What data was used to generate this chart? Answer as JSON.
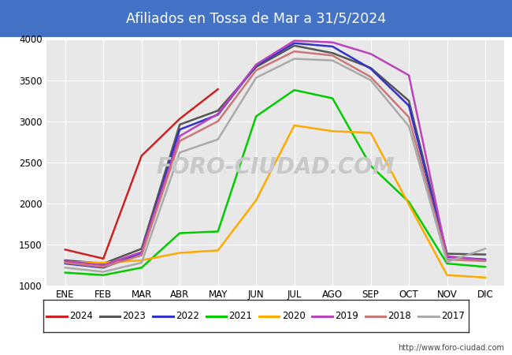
{
  "title": "Afiliados en Tossa de Mar a 31/5/2024",
  "title_color": "#ffffff",
  "title_bg": "#4472c4",
  "months": [
    "ENE",
    "FEB",
    "MAR",
    "ABR",
    "MAY",
    "JUN",
    "JUL",
    "AGO",
    "SEP",
    "OCT",
    "NOV",
    "DIC"
  ],
  "ylim": [
    1000,
    4000
  ],
  "yticks": [
    1000,
    1500,
    2000,
    2500,
    3000,
    3500,
    4000
  ],
  "series": {
    "2024": {
      "color": "#cc2222",
      "data": [
        1440,
        1330,
        2580,
        3030,
        3390,
        null,
        null,
        null,
        null,
        null,
        null,
        null
      ]
    },
    "2023": {
      "color": "#555555",
      "data": [
        1310,
        1270,
        1450,
        2960,
        3130,
        3660,
        3920,
        3830,
        3650,
        3250,
        1390,
        1380
      ]
    },
    "2022": {
      "color": "#3333cc",
      "data": [
        1270,
        1220,
        1400,
        2900,
        3080,
        3680,
        3950,
        3910,
        3640,
        3190,
        1350,
        1320
      ]
    },
    "2021": {
      "color": "#00cc00",
      "data": [
        1160,
        1130,
        1220,
        1640,
        1660,
        3060,
        3380,
        3280,
        2460,
        2020,
        1270,
        1230
      ]
    },
    "2020": {
      "color": "#ffaa00",
      "data": [
        1290,
        1280,
        1310,
        1400,
        1430,
        2040,
        2950,
        2880,
        2860,
        1990,
        1130,
        1100
      ]
    },
    "2019": {
      "color": "#bb44bb",
      "data": [
        1300,
        1250,
        1410,
        2820,
        3090,
        3690,
        3980,
        3960,
        3820,
        3560,
        1360,
        1310
      ]
    },
    "2018": {
      "color": "#cc7777",
      "data": [
        1280,
        1230,
        1370,
        2760,
        3000,
        3620,
        3850,
        3800,
        3540,
        3050,
        1320,
        1300
      ]
    },
    "2017": {
      "color": "#aaaaaa",
      "data": [
        1220,
        1170,
        1280,
        2620,
        2780,
        3530,
        3760,
        3740,
        3500,
        2940,
        1290,
        1450
      ]
    }
  },
  "legend_order": [
    "2024",
    "2023",
    "2022",
    "2021",
    "2020",
    "2019",
    "2018",
    "2017"
  ],
  "url_text": "http://www.foro-ciudad.com",
  "bg_plot": "#e8e8e8",
  "bg_fig": "#ffffff",
  "grid_color": "#ffffff",
  "watermark_text": "FORO-CIUDAD.COM",
  "watermark_color": "#c8c8c8"
}
